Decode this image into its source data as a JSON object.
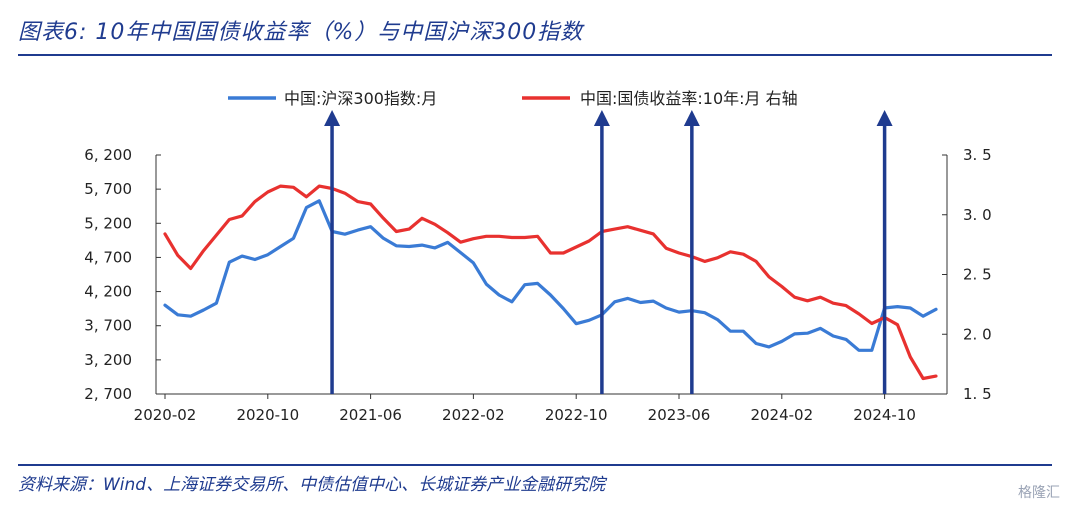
{
  "figure_title": "图表6:  10年中国国债收益率（%）与中国沪深300指数",
  "source": "资料来源：Wind、上海证券交易所、中债估值中心、长城证券产业金融研究院",
  "watermark": "格隆汇",
  "chart_data": {
    "type": "line",
    "x": [
      "2020-02",
      "2020-03",
      "2020-04",
      "2020-05",
      "2020-06",
      "2020-07",
      "2020-08",
      "2020-09",
      "2020-10",
      "2020-11",
      "2020-12",
      "2021-01",
      "2021-02",
      "2021-03",
      "2021-04",
      "2021-05",
      "2021-06",
      "2021-07",
      "2021-08",
      "2021-09",
      "2021-10",
      "2021-11",
      "2021-12",
      "2022-01",
      "2022-02",
      "2022-03",
      "2022-04",
      "2022-05",
      "2022-06",
      "2022-07",
      "2022-08",
      "2022-09",
      "2022-10",
      "2022-11",
      "2022-12",
      "2023-01",
      "2023-02",
      "2023-03",
      "2023-04",
      "2023-05",
      "2023-06",
      "2023-07",
      "2023-08",
      "2023-09",
      "2023-10",
      "2023-11",
      "2023-12",
      "2024-01",
      "2024-02",
      "2024-03",
      "2024-04",
      "2024-05",
      "2024-06",
      "2024-07",
      "2024-08",
      "2024-09",
      "2024-10",
      "2024-11",
      "2024-12",
      "2025-01",
      "2025-02"
    ],
    "x_tick_labels": [
      "2020-02",
      "2020-10",
      "2021-06",
      "2022-02",
      "2022-10",
      "2023-06",
      "2024-02",
      "2024-10"
    ],
    "x_tick_indices": [
      0,
      8,
      16,
      24,
      32,
      40,
      48,
      56
    ],
    "left_axis": {
      "ylim": [
        2700,
        6200
      ],
      "ticks": [
        2700,
        3200,
        3700,
        4200,
        4700,
        5200,
        5700,
        6200
      ],
      "tick_labels": [
        "2, 700",
        "3, 200",
        "3, 700",
        "4, 200",
        "4, 700",
        "5, 200",
        "5, 700",
        "6, 200"
      ]
    },
    "right_axis": {
      "ylim": [
        1.5,
        3.5
      ],
      "ticks": [
        1.5,
        2.0,
        2.5,
        3.0,
        3.5
      ],
      "tick_labels": [
        "1. 5",
        "2. 0",
        "2. 5",
        "3. 0",
        "3. 5"
      ]
    },
    "series": [
      {
        "name": "中国:沪深300指数:月",
        "axis": "left",
        "color": "#3a7bd5",
        "values": [
          4000,
          3860,
          3840,
          3930,
          4030,
          4630,
          4720,
          4670,
          4740,
          4860,
          4980,
          5430,
          5530,
          5080,
          5040,
          5100,
          5150,
          4980,
          4870,
          4860,
          4880,
          4840,
          4920,
          4770,
          4620,
          4310,
          4150,
          4050,
          4300,
          4320,
          4150,
          3950,
          3730,
          3780,
          3860,
          4050,
          4100,
          4040,
          4060,
          3960,
          3900,
          3920,
          3890,
          3790,
          3620,
          3620,
          3440,
          3390,
          3470,
          3580,
          3590,
          3660,
          3550,
          3500,
          3340,
          3340,
          3960,
          3980,
          3960,
          3840,
          3940
        ]
      },
      {
        "name": "中国:国债收益率:10年:月  右轴",
        "axis": "right",
        "color": "#e8312f",
        "values": [
          2.84,
          2.66,
          2.55,
          2.7,
          2.83,
          2.96,
          2.99,
          3.11,
          3.19,
          3.24,
          3.23,
          3.15,
          3.24,
          3.22,
          3.18,
          3.11,
          3.09,
          2.97,
          2.86,
          2.88,
          2.97,
          2.92,
          2.85,
          2.77,
          2.8,
          2.82,
          2.82,
          2.81,
          2.81,
          2.82,
          2.68,
          2.68,
          2.73,
          2.78,
          2.86,
          2.88,
          2.9,
          2.87,
          2.84,
          2.72,
          2.68,
          2.65,
          2.61,
          2.64,
          2.69,
          2.67,
          2.61,
          2.48,
          2.4,
          2.31,
          2.28,
          2.31,
          2.26,
          2.24,
          2.17,
          2.09,
          2.14,
          2.08,
          1.81,
          1.63,
          1.65
        ]
      }
    ],
    "annotations": [
      {
        "type": "vertical-arrow",
        "x_index": 13,
        "color": "#1f3b8f"
      },
      {
        "type": "vertical-arrow",
        "x_index": 34,
        "color": "#1f3b8f"
      },
      {
        "type": "vertical-arrow",
        "x_index": 41,
        "color": "#1f3b8f"
      },
      {
        "type": "vertical-arrow",
        "x_index": 56,
        "color": "#1f3b8f"
      }
    ],
    "legend_placement": "top",
    "grid": false
  }
}
